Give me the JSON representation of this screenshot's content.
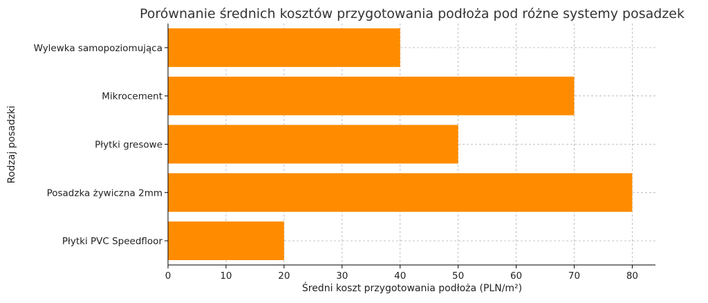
{
  "chart_data": {
    "type": "bar",
    "orientation": "horizontal",
    "title": "Porównanie średnich kosztów przygotowania podłoża pod różne systemy posadzek",
    "xlabel": "Średni koszt przygotowania podłoża (PLN/m²)",
    "ylabel": "Rodzaj posadzki",
    "categories": [
      "Wylewka samopoziomująca",
      "Mikrocement",
      "Płytki gresowe",
      "Posadzka żywiczna 2mm",
      "Płytki PVC Speedfloor"
    ],
    "values": [
      40,
      70,
      50,
      80,
      20
    ],
    "xlim": [
      0,
      84
    ],
    "xticks": [
      0,
      10,
      20,
      30,
      40,
      50,
      60,
      70,
      80
    ],
    "grid": true,
    "bar_color": "#ff8c00"
  }
}
